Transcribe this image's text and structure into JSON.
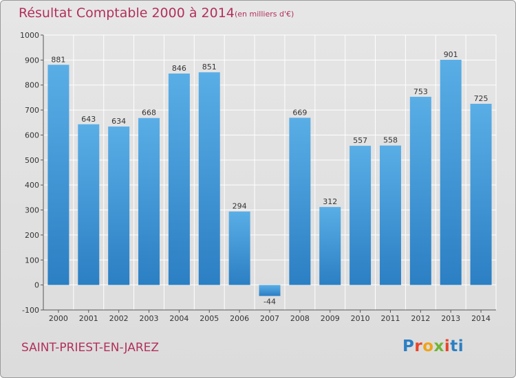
{
  "header": {
    "title": "Résultat Comptable 2000 à 2014",
    "subtitle": "(en milliers d'€)"
  },
  "footer": {
    "place": "SAINT-PRIEST-EN-JAREZ",
    "logo_letters": [
      "P",
      "r",
      "o",
      "x",
      "i",
      "ti"
    ]
  },
  "colors": {
    "title": "#b2305a",
    "bar_top": "#5aaee6",
    "bar_bottom": "#2b7fc3",
    "background": "#e0e0e0",
    "grid": "#ffffff"
  },
  "chart_data": {
    "type": "bar",
    "title": "Résultat Comptable 2000 à 2014",
    "subtitle": "(en milliers d'€)",
    "categories": [
      "2000",
      "2001",
      "2002",
      "2003",
      "2004",
      "2005",
      "2006",
      "2007",
      "2008",
      "2009",
      "2010",
      "2011",
      "2012",
      "2013",
      "2014"
    ],
    "values": [
      881,
      643,
      634,
      668,
      846,
      851,
      294,
      -44,
      669,
      312,
      557,
      558,
      753,
      901,
      725
    ],
    "ylim": [
      -100,
      1000
    ],
    "yticks": [
      -100,
      0,
      100,
      200,
      300,
      400,
      500,
      600,
      700,
      800,
      900,
      1000
    ],
    "grid": true,
    "xlabel": "",
    "ylabel": ""
  }
}
